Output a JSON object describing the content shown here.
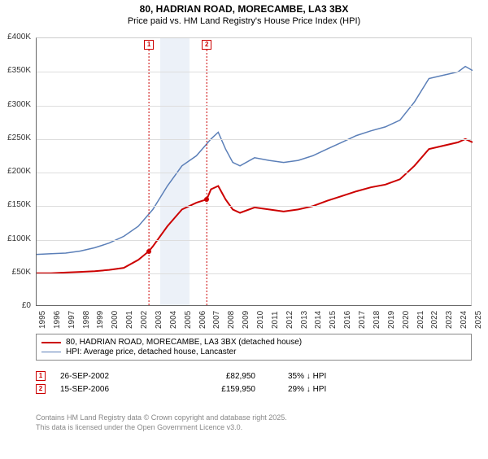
{
  "title": "80, HADRIAN ROAD, MORECAMBE, LA3 3BX",
  "subtitle": "Price paid vs. HM Land Registry's House Price Index (HPI)",
  "chart": {
    "type": "line",
    "x_years": [
      1995,
      1996,
      1997,
      1998,
      1999,
      2000,
      2001,
      2002,
      2003,
      2004,
      2005,
      2006,
      2007,
      2008,
      2009,
      2010,
      2011,
      2012,
      2013,
      2014,
      2015,
      2016,
      2017,
      2018,
      2019,
      2020,
      2021,
      2022,
      2023,
      2024,
      2025
    ],
    "ylim": [
      0,
      400000
    ],
    "yticks": [
      0,
      50000,
      100000,
      150000,
      200000,
      250000,
      300000,
      350000,
      400000
    ],
    "ytick_labels": [
      "£0",
      "£50K",
      "£100K",
      "£150K",
      "£200K",
      "£250K",
      "£300K",
      "£350K",
      "£400K"
    ],
    "grid_color": "#dddddd",
    "background_color": "#ffffff",
    "shade_band": {
      "x_start": 2003.5,
      "x_end": 2005.5,
      "color": "rgba(100,140,200,0.12)"
    },
    "series": [
      {
        "name": "80, HADRIAN ROAD, MORECAMBE, LA3 3BX (detached house)",
        "color": "#cc0000",
        "line_width": 2,
        "data": [
          [
            1995,
            50000
          ],
          [
            1996,
            50000
          ],
          [
            1997,
            51000
          ],
          [
            1998,
            52000
          ],
          [
            1999,
            53000
          ],
          [
            2000,
            55000
          ],
          [
            2001,
            58000
          ],
          [
            2002,
            70000
          ],
          [
            2002.73,
            82950
          ],
          [
            2003,
            90000
          ],
          [
            2004,
            120000
          ],
          [
            2005,
            145000
          ],
          [
            2006,
            155000
          ],
          [
            2006.71,
            159950
          ],
          [
            2007,
            175000
          ],
          [
            2007.5,
            180000
          ],
          [
            2008,
            160000
          ],
          [
            2008.5,
            145000
          ],
          [
            2009,
            140000
          ],
          [
            2010,
            148000
          ],
          [
            2011,
            145000
          ],
          [
            2012,
            142000
          ],
          [
            2013,
            145000
          ],
          [
            2014,
            150000
          ],
          [
            2015,
            158000
          ],
          [
            2016,
            165000
          ],
          [
            2017,
            172000
          ],
          [
            2018,
            178000
          ],
          [
            2019,
            182000
          ],
          [
            2020,
            190000
          ],
          [
            2021,
            210000
          ],
          [
            2022,
            235000
          ],
          [
            2023,
            240000
          ],
          [
            2024,
            245000
          ],
          [
            2024.5,
            250000
          ],
          [
            2025,
            245000
          ]
        ]
      },
      {
        "name": "HPI: Average price, detached house, Lancaster",
        "color": "#5b7fb8",
        "line_width": 1.5,
        "data": [
          [
            1995,
            78000
          ],
          [
            1996,
            79000
          ],
          [
            1997,
            80000
          ],
          [
            1998,
            83000
          ],
          [
            1999,
            88000
          ],
          [
            2000,
            95000
          ],
          [
            2001,
            105000
          ],
          [
            2002,
            120000
          ],
          [
            2003,
            145000
          ],
          [
            2004,
            180000
          ],
          [
            2005,
            210000
          ],
          [
            2006,
            225000
          ],
          [
            2007,
            250000
          ],
          [
            2007.5,
            260000
          ],
          [
            2008,
            235000
          ],
          [
            2008.5,
            215000
          ],
          [
            2009,
            210000
          ],
          [
            2010,
            222000
          ],
          [
            2011,
            218000
          ],
          [
            2012,
            215000
          ],
          [
            2013,
            218000
          ],
          [
            2014,
            225000
          ],
          [
            2015,
            235000
          ],
          [
            2016,
            245000
          ],
          [
            2017,
            255000
          ],
          [
            2018,
            262000
          ],
          [
            2019,
            268000
          ],
          [
            2020,
            278000
          ],
          [
            2021,
            305000
          ],
          [
            2022,
            340000
          ],
          [
            2023,
            345000
          ],
          [
            2024,
            350000
          ],
          [
            2024.5,
            358000
          ],
          [
            2025,
            352000
          ]
        ]
      }
    ],
    "markers": [
      {
        "label": "1",
        "x": 2002.73,
        "y": 82950,
        "box_y_offset": -260,
        "color": "#cc0000"
      },
      {
        "label": "2",
        "x": 2006.71,
        "y": 159950,
        "box_y_offset": -200,
        "color": "#cc0000"
      }
    ]
  },
  "legend": {
    "items": [
      {
        "color": "#cc0000",
        "width": 2,
        "label": "80, HADRIAN ROAD, MORECAMBE, LA3 3BX (detached house)"
      },
      {
        "color": "#5b7fb8",
        "width": 1.5,
        "label": "HPI: Average price, detached house, Lancaster"
      }
    ]
  },
  "sales": [
    {
      "marker": "1",
      "date": "26-SEP-2002",
      "price": "£82,950",
      "delta": "35% ↓ HPI"
    },
    {
      "marker": "2",
      "date": "15-SEP-2006",
      "price": "£159,950",
      "delta": "29% ↓ HPI"
    }
  ],
  "footer_note1": "Contains HM Land Registry data © Crown copyright and database right 2025.",
  "footer_note2": "This data is licensed under the Open Government Licence v3.0."
}
